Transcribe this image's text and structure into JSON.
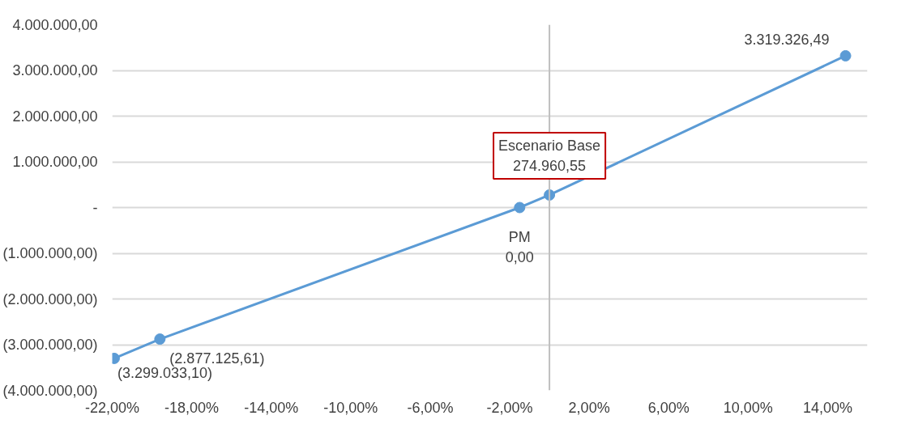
{
  "chart_data": {
    "type": "line",
    "x": [
      -21.9,
      -19.6,
      -1.5,
      0,
      14.9
    ],
    "series": [
      {
        "color": "#5b9bd5",
        "values": [
          -3299033.1,
          -2877125.61,
          0,
          274960.55,
          3319326.49
        ],
        "value_labels": [
          "(3.299.033,10)",
          "(2.877.125,61)",
          "0,00",
          "274.960,55",
          "3.319.326,49"
        ]
      }
    ],
    "marker": "circle",
    "line_style": "solid",
    "grid": "y",
    "xlim": [
      -22,
      16
    ],
    "xticks": [
      {
        "value": -22,
        "label": "-22,00%"
      },
      {
        "value": -18,
        "label": "-18,00%"
      },
      {
        "value": -14,
        "label": "-14,00%"
      },
      {
        "value": -10,
        "label": "-10,00%"
      },
      {
        "value": -6,
        "label": "-6,00%"
      },
      {
        "value": -2,
        "label": "-2,00%"
      },
      {
        "value": 2,
        "label": "2,00%"
      },
      {
        "value": 6,
        "label": "6,00%"
      },
      {
        "value": 10,
        "label": "10,00%"
      },
      {
        "value": 14,
        "label": "14,00%"
      }
    ],
    "ylim": [
      -4000000,
      4000000
    ],
    "yticks": [
      {
        "value": -4000000,
        "label": "(4.000.000,00)"
      },
      {
        "value": -3000000,
        "label": "(3.000.000,00)"
      },
      {
        "value": -2000000,
        "label": "(2.000.000,00)"
      },
      {
        "value": -1000000,
        "label": "(1.000.000,00)"
      },
      {
        "value": 0,
        "label": "-"
      },
      {
        "value": 1000000,
        "label": "1.000.000,00"
      },
      {
        "value": 2000000,
        "label": "2.000.000,00"
      },
      {
        "value": 3000000,
        "label": "3.000.000,00"
      },
      {
        "value": 4000000,
        "label": "4.000.000,00"
      }
    ],
    "ref_lines": [
      {
        "axis": "x",
        "value": 0,
        "color": "#bfbfbf"
      }
    ],
    "annotations": [
      {
        "text": "PM",
        "x": -1.5,
        "y": 0
      },
      {
        "text": "Escenario Base",
        "x": 0,
        "y": 274960.55
      }
    ]
  }
}
